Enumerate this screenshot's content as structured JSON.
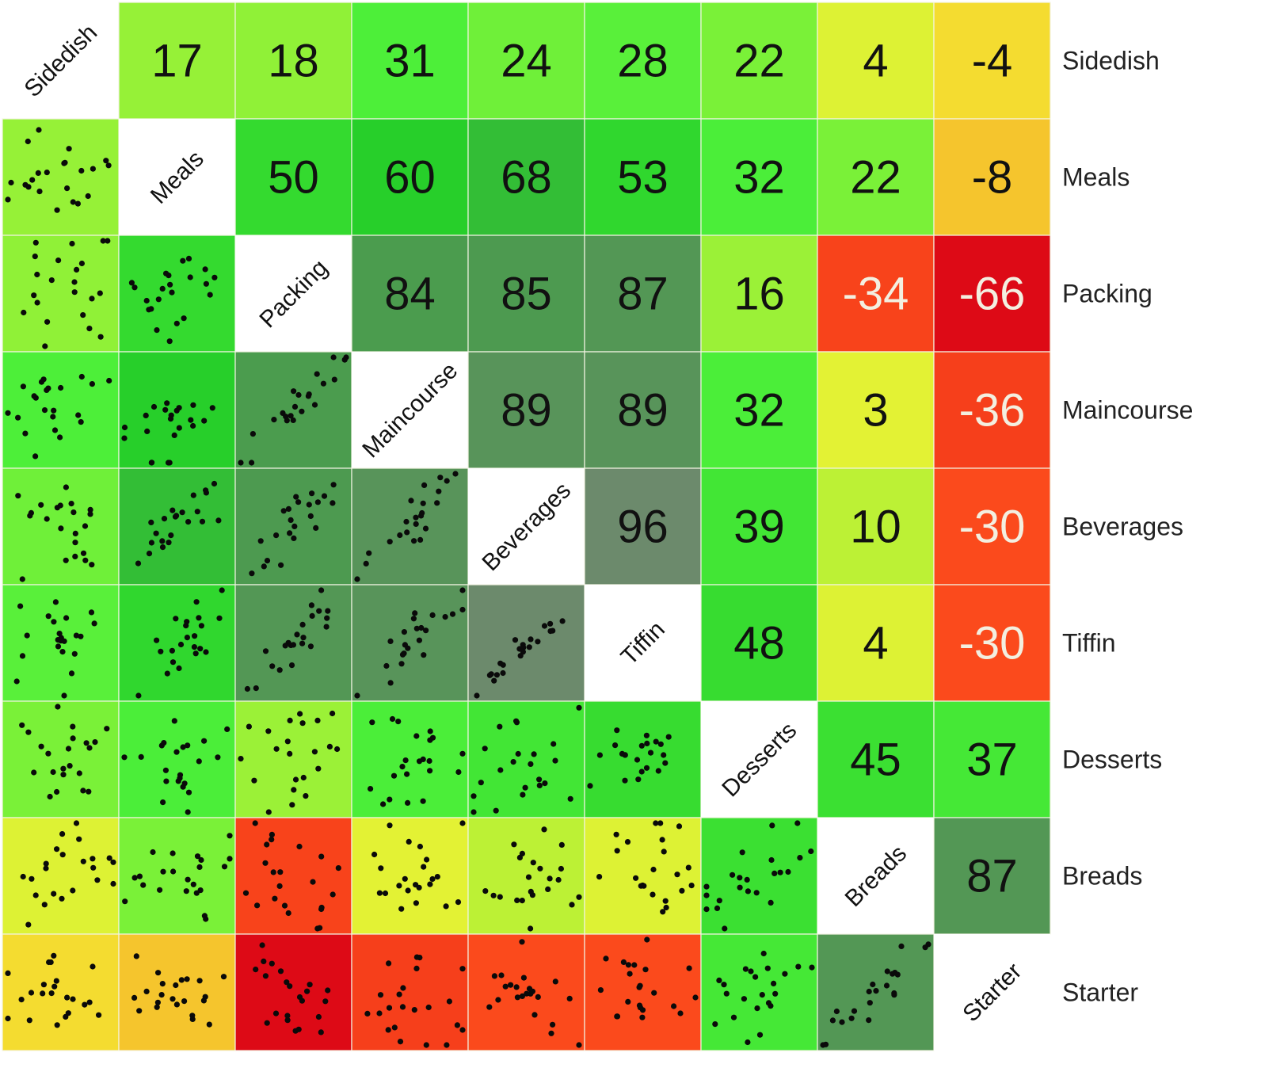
{
  "chart_data": {
    "type": "heatmap",
    "subtype": "correlogram (correlation matrix with scatter plots below the diagonal)",
    "variables": [
      "Sidedish",
      "Meals",
      "Packing",
      "Maincourse",
      "Beverages",
      "Tiffin",
      "Desserts",
      "Breads",
      "Starter"
    ],
    "correlations": [
      [
        null,
        17,
        18,
        31,
        24,
        28,
        22,
        4,
        -4
      ],
      [
        17,
        null,
        50,
        60,
        68,
        53,
        32,
        22,
        -8
      ],
      [
        18,
        50,
        null,
        84,
        85,
        87,
        16,
        -34,
        -66
      ],
      [
        31,
        60,
        84,
        null,
        89,
        89,
        32,
        3,
        -36
      ],
      [
        24,
        68,
        85,
        89,
        null,
        96,
        39,
        10,
        -30
      ],
      [
        28,
        53,
        87,
        89,
        96,
        null,
        48,
        4,
        -30
      ],
      [
        22,
        32,
        16,
        32,
        39,
        48,
        null,
        45,
        37
      ],
      [
        4,
        22,
        -34,
        3,
        10,
        4,
        45,
        null,
        87
      ],
      [
        -4,
        -8,
        -66,
        -36,
        -30,
        -30,
        37,
        87,
        null
      ]
    ],
    "upper_triangle": "correlation coefficient x100 printed",
    "lower_triangle": "scatter plot of pair",
    "diagonal": "variable name",
    "color_scale": {
      "-66": "#dd0a16",
      "-30": "#fb4a1c",
      "0": "#f3f233",
      "30": "#4ef03a",
      "60": "#27cf2a",
      "85": "#4d9a50",
      "96": "#6c8a6c"
    },
    "row_labels_position": "right"
  }
}
